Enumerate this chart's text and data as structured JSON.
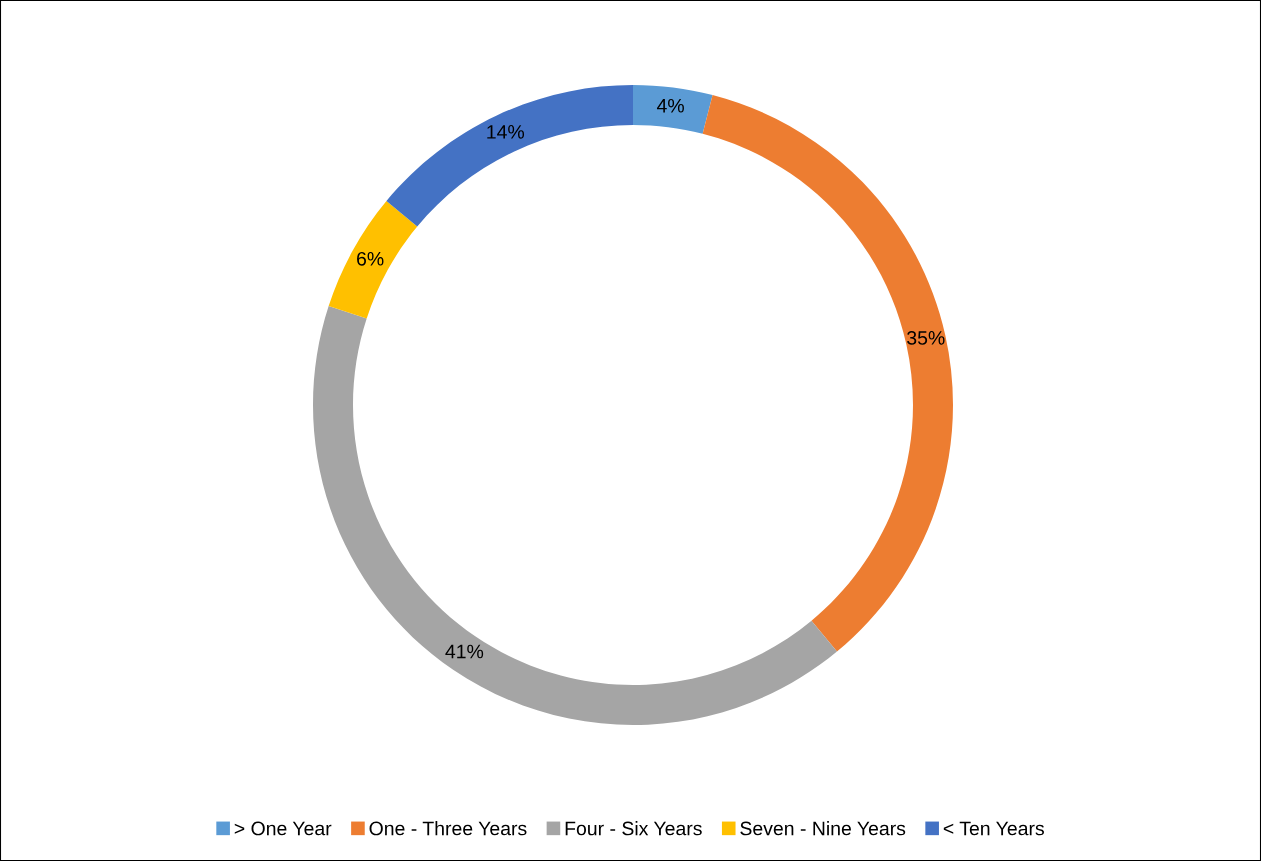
{
  "chart_data": {
    "type": "donut",
    "categories": [
      "> One Year",
      "One - Three Years",
      "Four - Six Years",
      "Seven - Nine Years",
      "< Ten Years"
    ],
    "values": [
      4,
      35,
      41,
      6,
      14
    ],
    "colors": [
      "#5b9bd5",
      "#ed7d31",
      "#a5a5a5",
      "#ffc000",
      "#4472c4"
    ],
    "value_labels": [
      "4%",
      "35%",
      "41%",
      "6%",
      "14%"
    ],
    "legend": "bottom"
  }
}
